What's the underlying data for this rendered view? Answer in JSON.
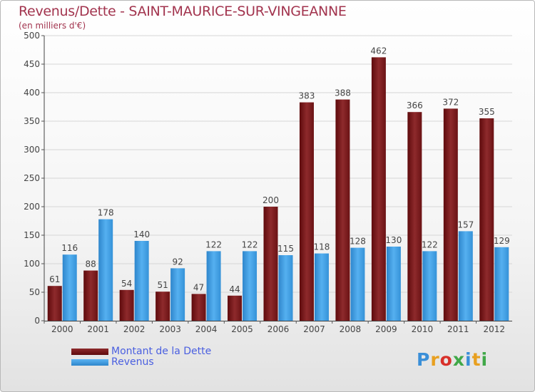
{
  "header": {
    "title": "Revenus/Dette - SAINT-MAURICE-SUR-VINGEANNE",
    "subtitle": "(en milliers d'€)"
  },
  "colors": {
    "dette": "#7d1c1e",
    "revenus": "#3a9ae0",
    "title": "#a2344e",
    "legend_text": "#4a5fe0"
  },
  "chart_data": {
    "type": "bar",
    "title": "Revenus/Dette - SAINT-MAURICE-SUR-VINGEANNE",
    "ylabel": "(en milliers d'€)",
    "categories": [
      "2000",
      "2001",
      "2002",
      "2003",
      "2004",
      "2005",
      "2006",
      "2007",
      "2008",
      "2009",
      "2010",
      "2011",
      "2012"
    ],
    "series": [
      {
        "name": "Montant de la Dette",
        "values": [
          61,
          88,
          54,
          51,
          47,
          44,
          200,
          383,
          388,
          462,
          366,
          372,
          355
        ]
      },
      {
        "name": "Revenus",
        "values": [
          116,
          178,
          140,
          92,
          122,
          122,
          115,
          118,
          128,
          130,
          122,
          157,
          129
        ]
      }
    ],
    "ylim": [
      0,
      500
    ],
    "yticks": [
      0,
      50,
      100,
      150,
      200,
      250,
      300,
      350,
      400,
      450,
      500
    ],
    "grid": true,
    "legend_position": "bottom-left"
  },
  "logo": {
    "text": "Proxiti"
  }
}
